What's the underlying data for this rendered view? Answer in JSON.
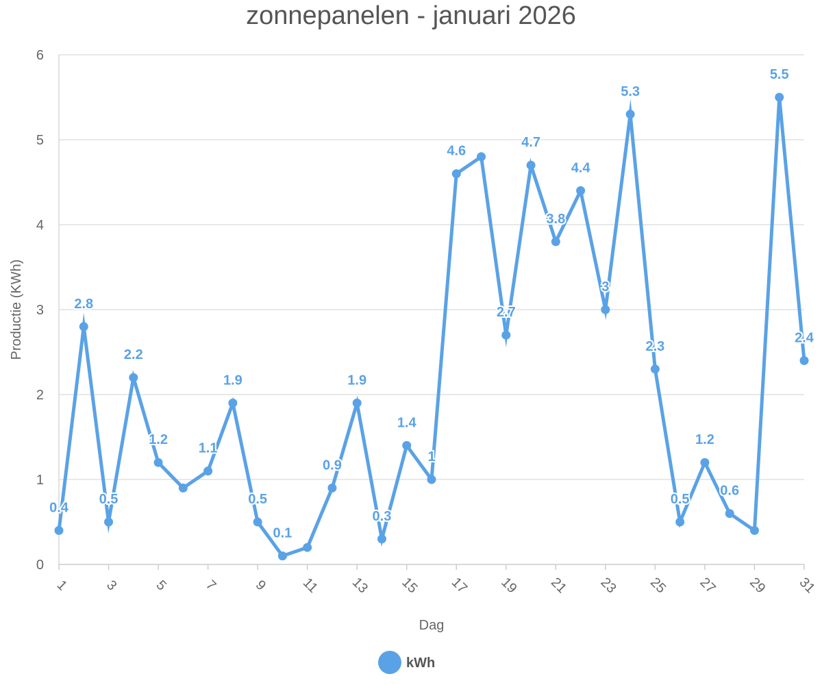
{
  "chart_data": {
    "type": "line",
    "title": "zonnepanelen - januari 2026",
    "xlabel": "Dag",
    "ylabel": "Productie (KWh)",
    "x": [
      1,
      2,
      3,
      4,
      5,
      6,
      7,
      8,
      9,
      10,
      11,
      12,
      13,
      14,
      15,
      16,
      17,
      18,
      19,
      20,
      21,
      22,
      23,
      24,
      25,
      26,
      27,
      28,
      29,
      30,
      31
    ],
    "x_tick_labels": [
      "1",
      "3",
      "5",
      "7",
      "9",
      "11",
      "13",
      "15",
      "17",
      "19",
      "21",
      "23",
      "25",
      "27",
      "29",
      "31"
    ],
    "y_tick_labels": [
      "0",
      "1",
      "2",
      "3",
      "4",
      "5",
      "6"
    ],
    "ylim": [
      0,
      6
    ],
    "grid": true,
    "legend_position": "bottom",
    "series": [
      {
        "name": "kWh",
        "color": "#5aa2e6",
        "values": [
          0.4,
          2.8,
          0.5,
          2.2,
          1.2,
          0.9,
          1.1,
          1.9,
          0.5,
          0.1,
          0.2,
          0.9,
          1.9,
          0.3,
          1.4,
          1,
          4.6,
          4.8,
          2.7,
          4.7,
          3.8,
          4.4,
          3,
          5.3,
          2.3,
          0.5,
          1.2,
          0.6,
          0.4,
          5.5,
          2.4
        ],
        "data_labels": [
          "0.4",
          "2.8",
          "0.5",
          "2.2",
          "1.2",
          "",
          "1.1",
          "1.9",
          "0.5",
          "0.1",
          "",
          "0.9",
          "1.9",
          "0.3",
          "1.4",
          "1",
          "4.6",
          "",
          "2.7",
          "4.7",
          "3.8",
          "4.4",
          "3",
          "5.3",
          "2.3",
          "0.5",
          "1.2",
          "0.6",
          "",
          "5.5",
          "2.4"
        ]
      }
    ]
  }
}
